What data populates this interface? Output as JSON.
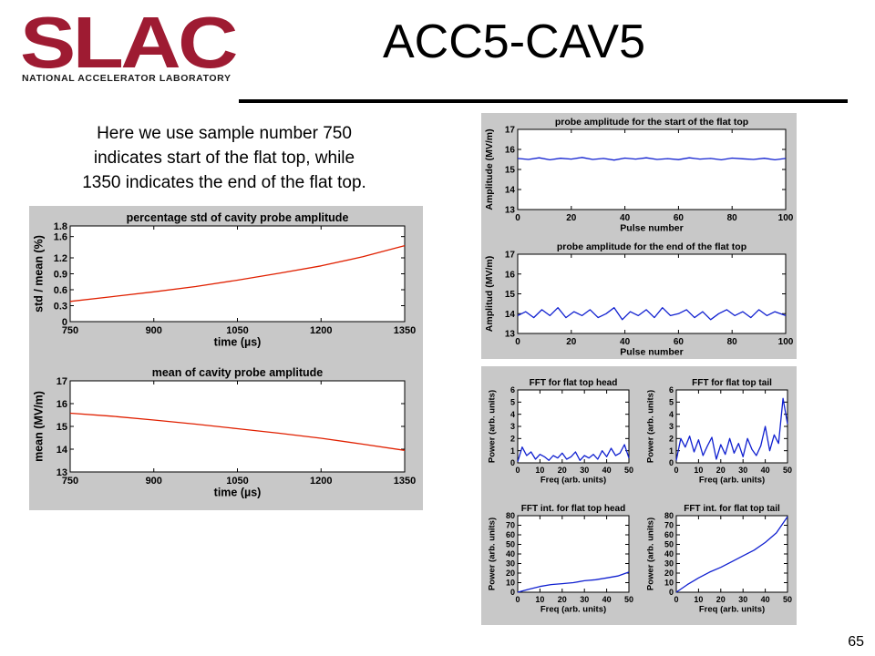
{
  "logo": {
    "text": "SLAC",
    "subtitle": "NATIONAL ACCELERATOR LABORATORY",
    "color": "#9e1b32"
  },
  "slide": {
    "title": "ACC5-CAV5",
    "description_lines": [
      "Here we use sample number 750",
      "indicates start of the flat top, while",
      "1350 indicates the end of the flat top."
    ],
    "page_number": "65"
  },
  "chart_data": [
    {
      "id": "std",
      "type": "line",
      "title": "percentage std of cavity probe amplitude",
      "xlabel": "time (µs)",
      "ylabel": "std / mean (%)",
      "xlim": [
        750,
        1350
      ],
      "ylim": [
        0,
        1.8
      ],
      "xticks": [
        "750",
        "900",
        "1050",
        "1200",
        "1350"
      ],
      "yticks": [
        "0",
        "0.3",
        "0.6",
        "0.9",
        "1.2",
        "1.6",
        "1.8"
      ],
      "grid": false,
      "series": [
        {
          "color": "#e02000",
          "x": [
            750,
            825,
            900,
            975,
            1050,
            1125,
            1200,
            1275,
            1350
          ],
          "y": [
            0.38,
            0.47,
            0.56,
            0.66,
            0.78,
            0.91,
            1.05,
            1.22,
            1.43
          ]
        }
      ]
    },
    {
      "id": "mean",
      "type": "line",
      "title": "mean of cavity probe amplitude",
      "xlabel": "time (µs)",
      "ylabel": "mean (MV/m)",
      "xlim": [
        750,
        1350
      ],
      "ylim": [
        13,
        17
      ],
      "xticks": [
        "750",
        "900",
        "1050",
        "1200",
        "1350"
      ],
      "yticks": [
        "13",
        "14",
        "15",
        "16",
        "17"
      ],
      "grid": false,
      "series": [
        {
          "color": "#e02000",
          "x": [
            750,
            825,
            900,
            975,
            1050,
            1125,
            1200,
            1275,
            1350
          ],
          "y": [
            15.58,
            15.45,
            15.28,
            15.1,
            14.9,
            14.7,
            14.48,
            14.22,
            13.95
          ]
        }
      ]
    },
    {
      "id": "probe-start",
      "type": "line",
      "title": "probe amplitude for the start of the flat top",
      "xlabel": "Pulse number",
      "ylabel": "Amplitude (MV/m)",
      "xlim": [
        0,
        100
      ],
      "ylim": [
        13,
        17
      ],
      "xticks": [
        "0",
        "20",
        "40",
        "60",
        "80",
        "100"
      ],
      "yticks": [
        "13",
        "14",
        "15",
        "16",
        "17"
      ],
      "grid": false,
      "series": [
        {
          "color": "#1020d0",
          "x": [
            0,
            4,
            8,
            12,
            16,
            20,
            24,
            28,
            32,
            36,
            40,
            44,
            48,
            52,
            56,
            60,
            64,
            68,
            72,
            76,
            80,
            84,
            88,
            92,
            96,
            100
          ],
          "y": [
            15.55,
            15.5,
            15.58,
            15.48,
            15.56,
            15.52,
            15.6,
            15.5,
            15.55,
            15.47,
            15.57,
            15.52,
            15.58,
            15.5,
            15.54,
            15.49,
            15.58,
            15.52,
            15.55,
            15.48,
            15.57,
            15.53,
            15.5,
            15.56,
            15.48,
            15.55
          ]
        }
      ]
    },
    {
      "id": "probe-end",
      "type": "line",
      "title": "probe amplitude for the end of the flat top",
      "xlabel": "Pulse number",
      "ylabel": "Amplitud (MV/m)",
      "xlim": [
        0,
        100
      ],
      "ylim": [
        13,
        17
      ],
      "xticks": [
        "0",
        "20",
        "40",
        "60",
        "80",
        "100"
      ],
      "yticks": [
        "13",
        "14",
        "15",
        "16",
        "17"
      ],
      "grid": false,
      "series": [
        {
          "color": "#1020d0",
          "x": [
            0,
            3,
            6,
            9,
            12,
            15,
            18,
            21,
            24,
            27,
            30,
            33,
            36,
            39,
            42,
            45,
            48,
            51,
            54,
            57,
            60,
            63,
            66,
            69,
            72,
            75,
            78,
            81,
            84,
            87,
            90,
            93,
            96,
            100
          ],
          "y": [
            13.9,
            14.1,
            13.8,
            14.2,
            13.9,
            14.3,
            13.8,
            14.1,
            13.9,
            14.2,
            13.8,
            14.0,
            14.3,
            13.7,
            14.1,
            13.9,
            14.2,
            13.8,
            14.3,
            13.9,
            14.0,
            14.2,
            13.8,
            14.1,
            13.7,
            14.0,
            14.2,
            13.9,
            14.1,
            13.8,
            14.2,
            13.9,
            14.1,
            13.9
          ]
        }
      ]
    },
    {
      "id": "fft-head",
      "type": "line",
      "title": "FFT for flat top head",
      "xlabel": "Freq (arb. units)",
      "ylabel": "Power (arb. units)",
      "xlim": [
        0,
        50
      ],
      "ylim": [
        0,
        6
      ],
      "xticks": [
        "0",
        "10",
        "20",
        "30",
        "40",
        "50"
      ],
      "yticks": [
        "0",
        "1",
        "2",
        "3",
        "4",
        "5",
        "6"
      ],
      "grid": false,
      "series": [
        {
          "color": "#1020d0",
          "x": [
            0,
            2,
            4,
            6,
            8,
            10,
            12,
            14,
            16,
            18,
            20,
            22,
            24,
            26,
            28,
            30,
            32,
            34,
            36,
            38,
            40,
            42,
            44,
            46,
            48,
            50
          ],
          "y": [
            0.1,
            1.3,
            0.6,
            0.9,
            0.3,
            0.7,
            0.5,
            0.2,
            0.6,
            0.4,
            0.8,
            0.3,
            0.5,
            0.9,
            0.2,
            0.6,
            0.4,
            0.7,
            0.3,
            1.0,
            0.5,
            1.2,
            0.6,
            0.8,
            1.5,
            0.4
          ]
        }
      ]
    },
    {
      "id": "fft-tail",
      "type": "line",
      "title": "FFT for flat top tail",
      "xlabel": "Freq (arb. units)",
      "ylabel": "Power (arb. units)",
      "xlim": [
        0,
        50
      ],
      "ylim": [
        0,
        6
      ],
      "xticks": [
        "0",
        "10",
        "20",
        "30",
        "40",
        "50"
      ],
      "yticks": [
        "0",
        "1",
        "2",
        "3",
        "4",
        "5",
        "6"
      ],
      "grid": false,
      "series": [
        {
          "color": "#1020d0",
          "x": [
            0,
            2,
            4,
            6,
            8,
            10,
            12,
            14,
            16,
            18,
            20,
            22,
            24,
            26,
            28,
            30,
            32,
            34,
            36,
            38,
            40,
            42,
            44,
            46,
            48,
            50
          ],
          "y": [
            0.2,
            2.0,
            1.3,
            2.2,
            0.9,
            1.9,
            0.6,
            1.4,
            2.1,
            0.3,
            1.5,
            0.7,
            2.0,
            0.8,
            1.6,
            0.5,
            2.0,
            1.1,
            0.6,
            1.4,
            3.0,
            1.0,
            2.3,
            1.6,
            5.3,
            3.2
          ]
        }
      ]
    },
    {
      "id": "fft-int-head",
      "type": "line",
      "title": "FFT int. for flat top head",
      "xlabel": "Freq (arb. units)",
      "ylabel": "Power (arb. units)",
      "xlim": [
        0,
        50
      ],
      "ylim": [
        0,
        80
      ],
      "xticks": [
        "0",
        "10",
        "20",
        "30",
        "40",
        "50"
      ],
      "yticks": [
        "0",
        "10",
        "20",
        "30",
        "40",
        "50",
        "60",
        "70",
        "80"
      ],
      "grid": false,
      "series": [
        {
          "color": "#1020d0",
          "x": [
            0,
            5,
            10,
            15,
            20,
            25,
            30,
            35,
            40,
            45,
            50
          ],
          "y": [
            0,
            3,
            6,
            8,
            9,
            10,
            12,
            13,
            15,
            17,
            21
          ]
        }
      ]
    },
    {
      "id": "fft-int-tail",
      "type": "line",
      "title": "FFT int. for flat top tail",
      "xlabel": "Freq (arb. units)",
      "ylabel": "Power (arb. units)",
      "xlim": [
        0,
        50
      ],
      "ylim": [
        0,
        80
      ],
      "xticks": [
        "0",
        "10",
        "20",
        "30",
        "40",
        "50"
      ],
      "yticks": [
        "0",
        "10",
        "20",
        "30",
        "40",
        "50",
        "60",
        "70",
        "80"
      ],
      "grid": false,
      "series": [
        {
          "color": "#1020d0",
          "x": [
            0,
            5,
            10,
            15,
            20,
            25,
            30,
            35,
            40,
            45,
            50
          ],
          "y": [
            0,
            8,
            15,
            21,
            26,
            32,
            38,
            44,
            52,
            62,
            79
          ]
        }
      ]
    }
  ]
}
